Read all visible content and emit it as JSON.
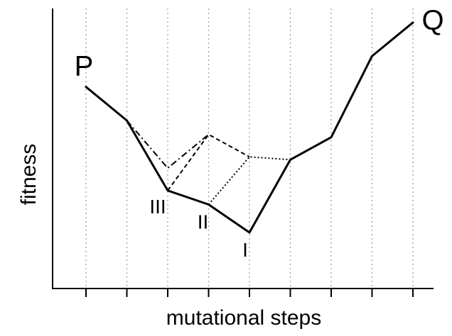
{
  "chart_data": {
    "type": "line",
    "title": "",
    "xlabel": "mutational steps",
    "ylabel": "fitness",
    "x": [
      0,
      1,
      2,
      3,
      4,
      5,
      6,
      7,
      8
    ],
    "xlim": [
      -1,
      8.4
    ],
    "ylim": [
      0,
      10
    ],
    "grid": "vertical dotted lines at each mutational step",
    "series": [
      {
        "style": "solid",
        "points": [
          [
            0,
            7.2
          ],
          [
            1,
            6.0
          ],
          [
            2,
            3.5
          ],
          [
            3,
            3.0
          ],
          [
            4,
            2.0
          ],
          [
            5,
            4.6
          ],
          [
            6,
            5.4
          ],
          [
            7,
            8.3
          ],
          [
            8,
            9.5
          ]
        ]
      },
      {
        "style": "dash-dot",
        "points": [
          [
            1,
            6.0
          ],
          [
            2,
            4.3
          ],
          [
            3,
            5.5
          ]
        ]
      },
      {
        "style": "dashed",
        "points": [
          [
            2,
            3.5
          ],
          [
            3,
            5.5
          ],
          [
            4,
            4.7
          ]
        ]
      },
      {
        "style": "dotted",
        "points": [
          [
            3,
            3.0
          ],
          [
            4,
            4.7
          ],
          [
            5,
            4.6
          ]
        ]
      }
    ],
    "annotations": [
      {
        "text": "P",
        "x": 0,
        "y": 7.2,
        "kind": "endpoint"
      },
      {
        "text": "Q",
        "x": 8,
        "y": 9.5,
        "kind": "endpoint"
      },
      {
        "text": "III",
        "x": 2,
        "y": 3.5,
        "kind": "point"
      },
      {
        "text": "II",
        "x": 3,
        "y": 3.0,
        "kind": "point"
      },
      {
        "text": "I",
        "x": 4,
        "y": 2.0,
        "kind": "point"
      }
    ]
  }
}
